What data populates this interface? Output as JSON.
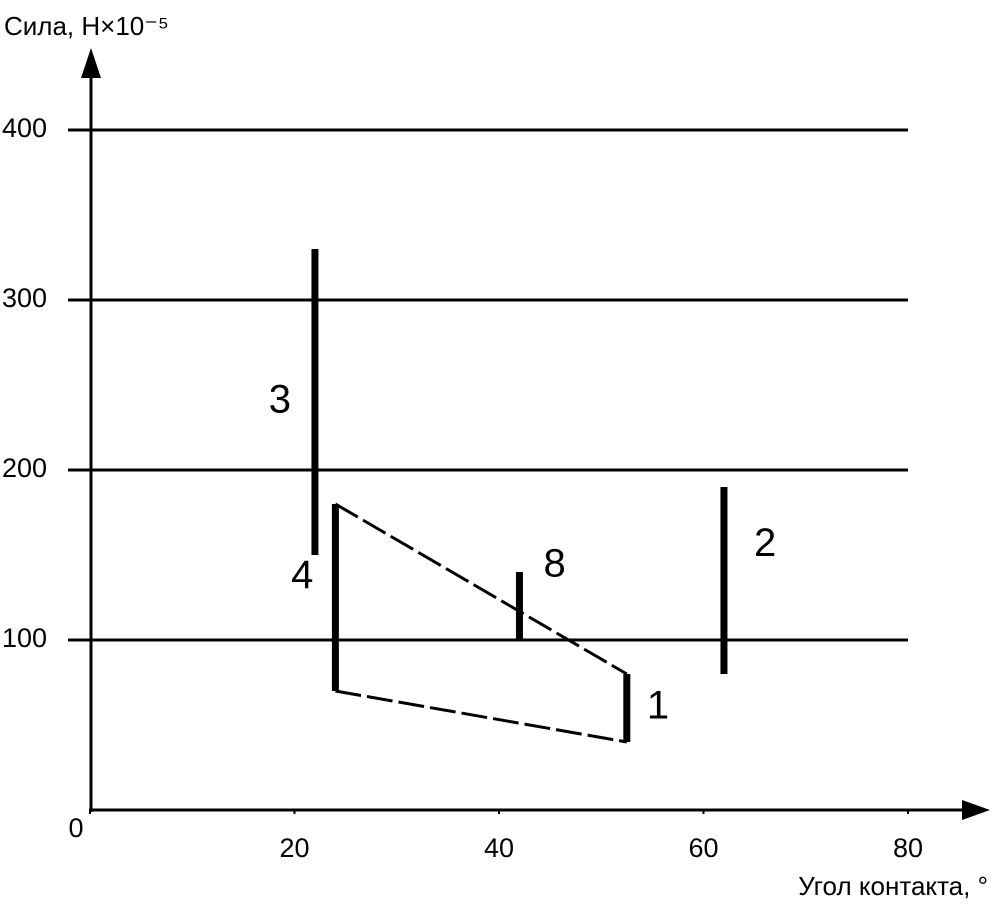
{
  "chart_data": {
    "type": "range",
    "ylabel": "Сила, Н×10⁻⁵",
    "xlabel": "Угол контакта, °",
    "xlim": [
      0,
      80
    ],
    "xticks": [
      0,
      20,
      40,
      60,
      80
    ],
    "ylim": [
      0,
      400
    ],
    "yticks": [
      100,
      200,
      300,
      400
    ],
    "grid": true,
    "color": "#000000",
    "series": [
      {
        "name": "3",
        "x": 22,
        "low": 150,
        "high": 330
      },
      {
        "name": "4",
        "x": 24,
        "low": 70,
        "high": 180
      },
      {
        "name": "8",
        "x": 42,
        "low": 100,
        "high": 140
      },
      {
        "name": "2",
        "x": 62,
        "low": 80,
        "high": 190
      },
      {
        "name": "1",
        "x": 52.5,
        "low": 40,
        "high": 80
      }
    ],
    "dashed_envelope": [
      "4",
      "1"
    ]
  }
}
